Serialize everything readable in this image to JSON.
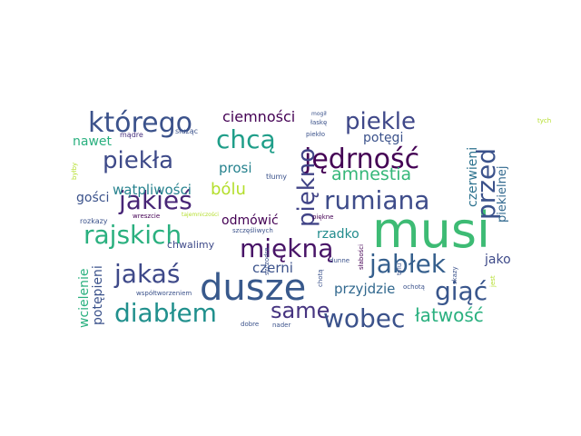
{
  "words": [
    {
      "text": "musi",
      "color": "#3dbb74"
    },
    {
      "text": "dusze",
      "color": "#38598c"
    },
    {
      "text": "którego",
      "color": "#3b528b"
    },
    {
      "text": "piekle",
      "color": "#3f4889"
    },
    {
      "text": "jędrność",
      "color": "#440154"
    },
    {
      "text": "piękno",
      "color": "#414487"
    },
    {
      "text": "przed",
      "color": "#3b528b"
    },
    {
      "text": "chcą",
      "color": "#1f9e89"
    },
    {
      "text": "piekła",
      "color": "#3e4a89"
    },
    {
      "text": "rumiana",
      "color": "#3e4c8a"
    },
    {
      "text": "jakieś",
      "color": "#482677"
    },
    {
      "text": "rajskich",
      "color": "#2ab07f"
    },
    {
      "text": "miękną",
      "color": "#481467"
    },
    {
      "text": "jabłek",
      "color": "#355f8d"
    },
    {
      "text": "jakaś",
      "color": "#3e4989"
    },
    {
      "text": "same",
      "color": "#463480"
    },
    {
      "text": "diabłem",
      "color": "#21908d"
    },
    {
      "text": "wobec",
      "color": "#3b528b"
    },
    {
      "text": "giąć",
      "color": "#39568c"
    },
    {
      "text": "łatwość",
      "color": "#2ab07f"
    },
    {
      "text": "amnestia",
      "color": "#35b779"
    },
    {
      "text": "bólu",
      "color": "#b4de2c"
    },
    {
      "text": "ciemności",
      "color": "#440154"
    },
    {
      "text": "potęgi",
      "color": "#3b528b"
    },
    {
      "text": "wątpliwości",
      "color": "#26828e"
    },
    {
      "text": "czerwieni",
      "color": "#2c728e"
    },
    {
      "text": "piekielnej",
      "color": "#31688e"
    },
    {
      "text": "nawet",
      "color": "#2ab07f"
    },
    {
      "text": "prosi",
      "color": "#26828e"
    },
    {
      "text": "gości",
      "color": "#3b528b"
    },
    {
      "text": "odmówić",
      "color": "#440154"
    },
    {
      "text": "rzadko",
      "color": "#228c8d"
    },
    {
      "text": "czerni",
      "color": "#3b528b"
    },
    {
      "text": "jako",
      "color": "#3e4a89"
    },
    {
      "text": "przyjdzie",
      "color": "#31688e"
    },
    {
      "text": "chwalimy",
      "color": "#3e4a89"
    },
    {
      "text": "wcielenie",
      "color": "#2ab07f"
    },
    {
      "text": "potępieni",
      "color": "#3b528b"
    },
    {
      "text": "mądre",
      "color": "#46307e"
    },
    {
      "text": "służąc",
      "color": "#3b528b"
    },
    {
      "text": "tłumy",
      "color": "#3b528b"
    },
    {
      "text": "łaskę",
      "color": "#3b528b"
    },
    {
      "text": "mogił",
      "color": "#3b528b"
    },
    {
      "text": "piekło",
      "color": "#3b528b"
    },
    {
      "text": "tych",
      "color": "#b4de2c"
    },
    {
      "text": "byłby",
      "color": "#b4de2c"
    },
    {
      "text": "rozkazy",
      "color": "#3b528b"
    },
    {
      "text": "wreszcie",
      "color": "#440154"
    },
    {
      "text": "szczęśliwych",
      "color": "#3b528b"
    },
    {
      "text": "piękne",
      "color": "#440154"
    },
    {
      "text": "szczodre",
      "color": "#3b528b"
    },
    {
      "text": "współtworzeniem",
      "color": "#3b528b"
    },
    {
      "text": "dunne",
      "color": "#3b528b"
    },
    {
      "text": "chotą",
      "color": "#3b528b"
    },
    {
      "text": "słabości",
      "color": "#440154"
    },
    {
      "text": "skazy",
      "color": "#3b528b"
    },
    {
      "text": "ochotą",
      "color": "#3b528b"
    },
    {
      "text": "dobre",
      "color": "#3b528b"
    },
    {
      "text": "nader",
      "color": "#3b528b"
    },
    {
      "text": "jest",
      "color": "#b4de2c"
    },
    {
      "text": "tylu",
      "color": "#3b528b"
    },
    {
      "text": "tajemniczości",
      "color": "#b4de2c"
    }
  ]
}
